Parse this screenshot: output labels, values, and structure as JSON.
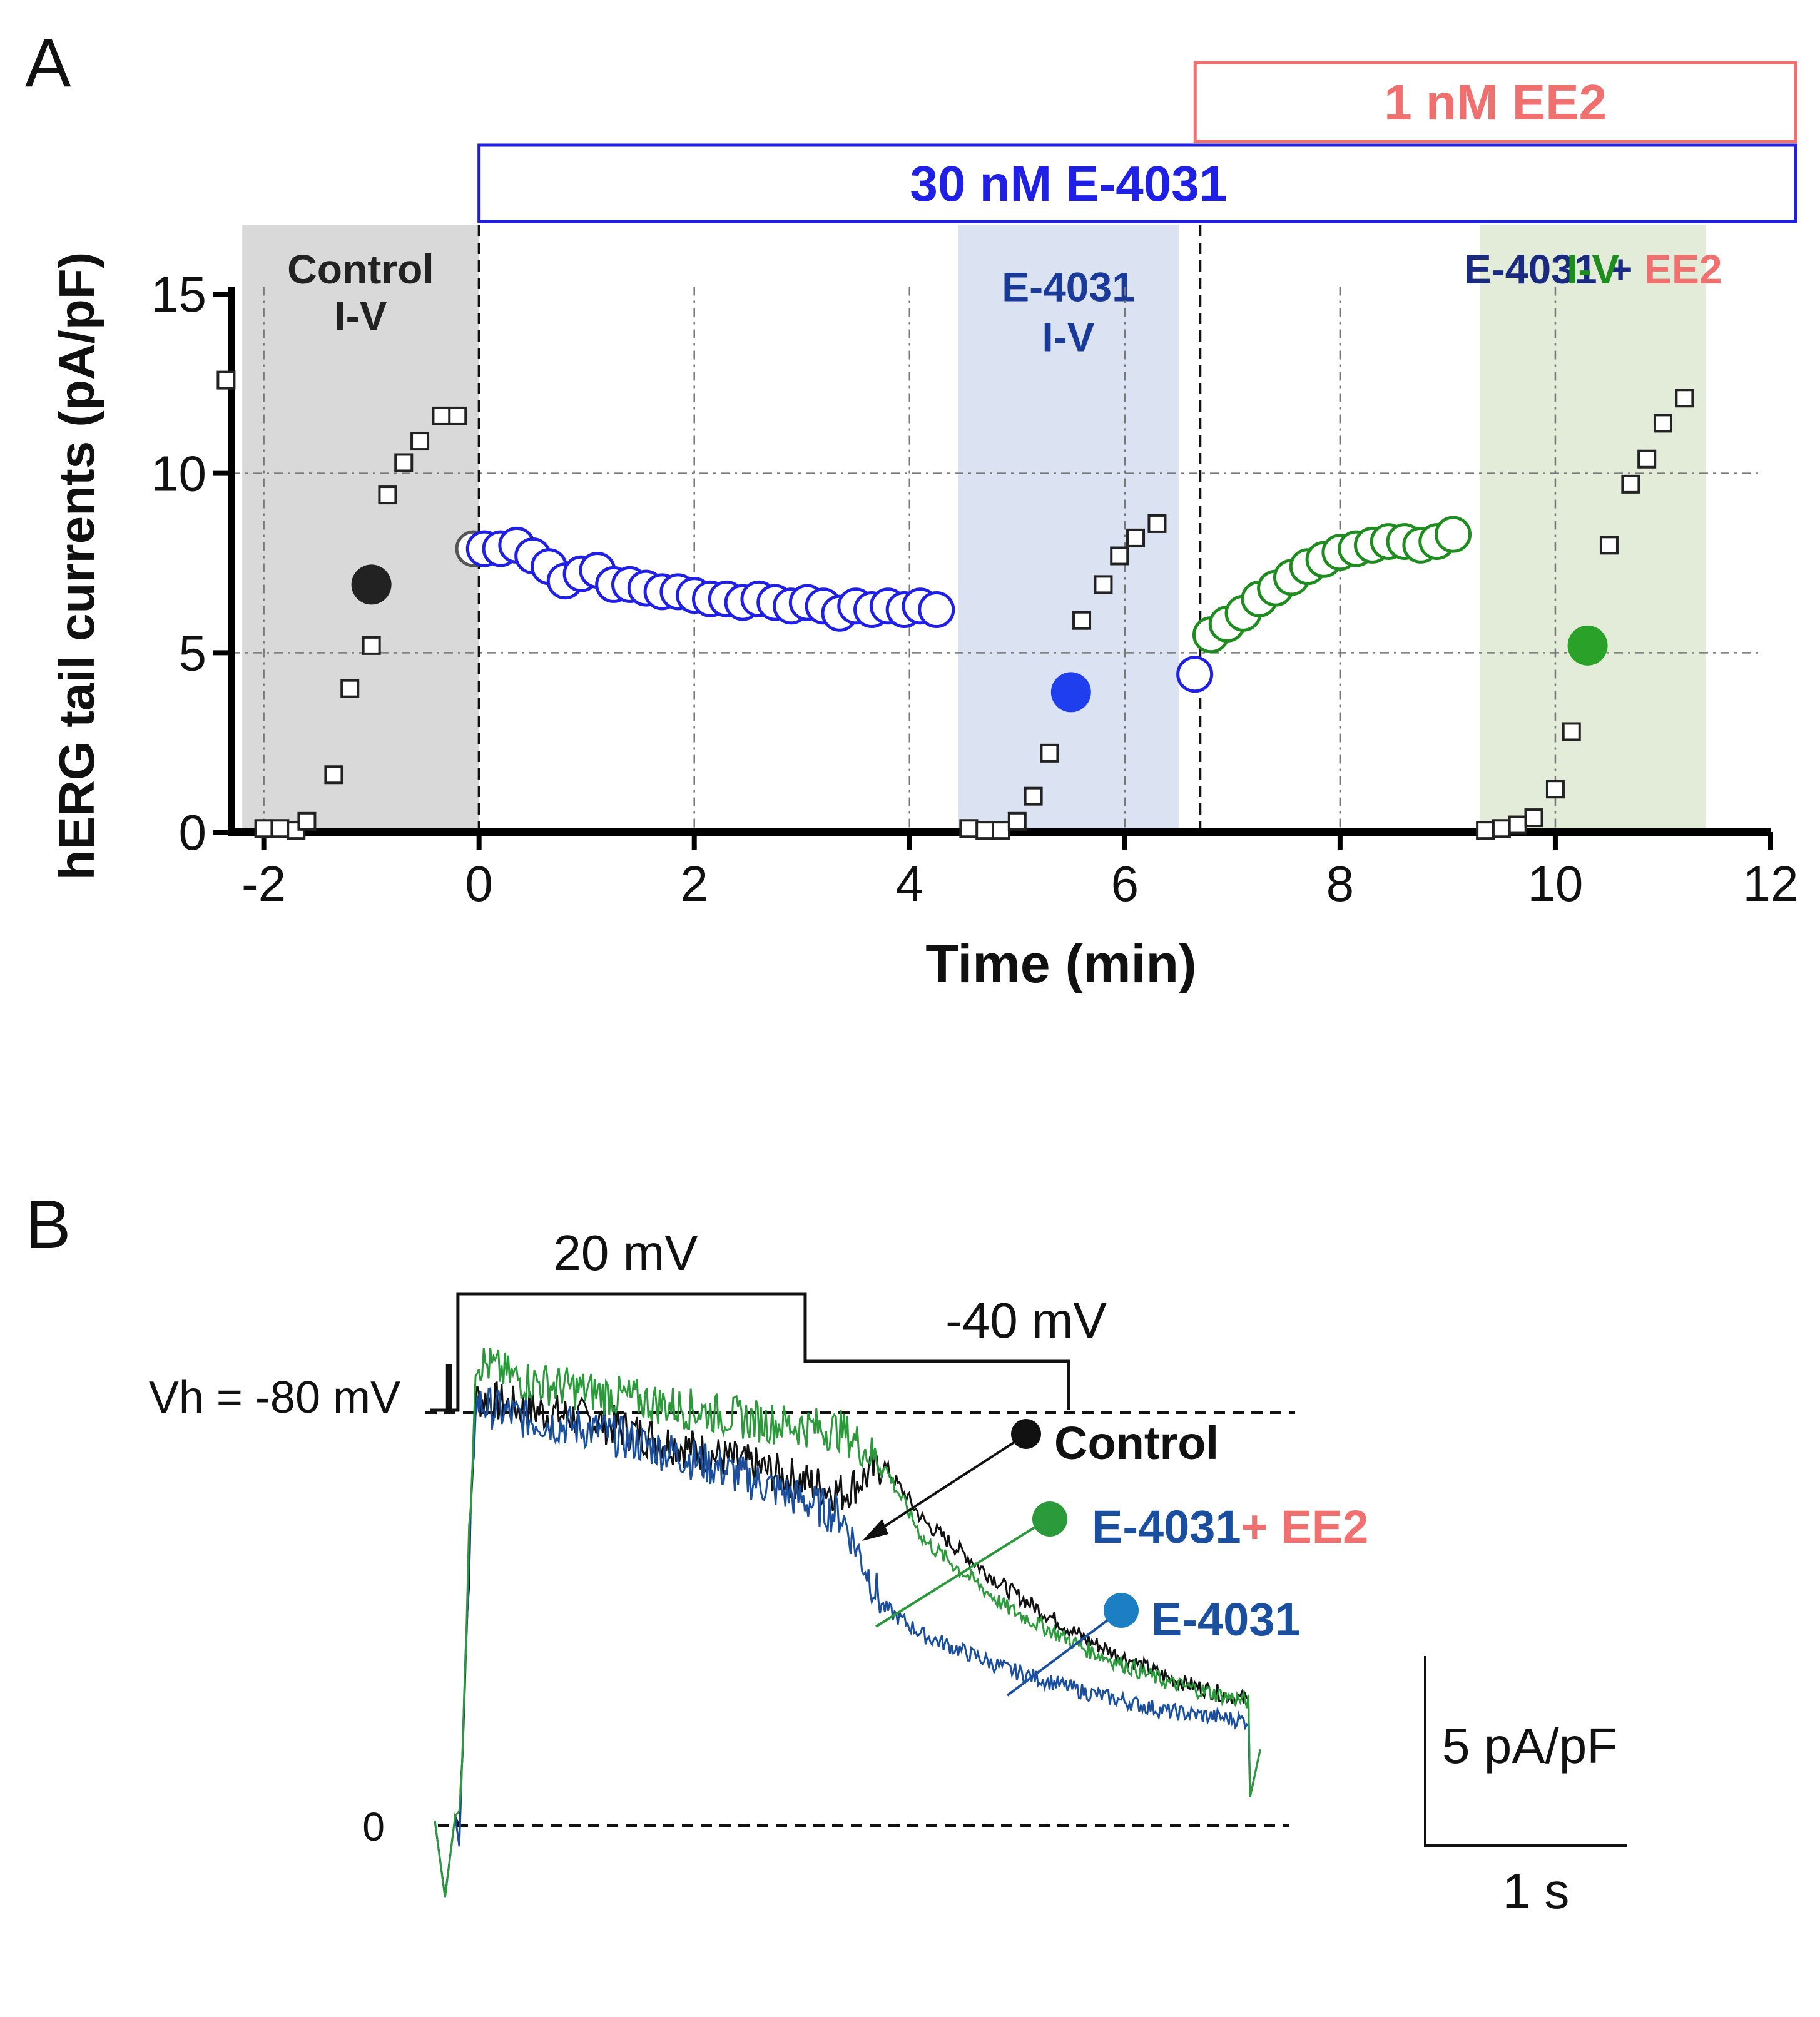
{
  "panels": {
    "a_label": "A",
    "b_label": "B"
  },
  "colors": {
    "control": "#222222",
    "e4031": "#1f1fe6",
    "ee2": "#f07070",
    "green": "#1e8c1e",
    "trace_blue": "#1a4fa0",
    "trace_green": "#2a9a3a",
    "dot_blue_light": "#1c7fc4",
    "shade_control": "#d9d9d9",
    "shade_e4031": "#dbe2f1",
    "shade_green": "#e2ecd9"
  },
  "chart_data": [
    {
      "type": "scatter",
      "panel": "A",
      "title": "",
      "xlabel": "Time (min)",
      "ylabel": "hERG tail currents (pA/pF)",
      "xlim": [
        -2.3,
        12
      ],
      "ylim": [
        0,
        15
      ],
      "xticks": [
        -2,
        0,
        2,
        4,
        6,
        8,
        10,
        12
      ],
      "xtick_labels": [
        "-2",
        "0",
        "2",
        "4",
        "6",
        "8",
        "10",
        "12"
      ],
      "yticks": [
        0,
        5,
        10,
        15
      ],
      "ytick_labels": [
        "0",
        "5",
        "10",
        "15"
      ],
      "grid": true,
      "drug_bars": [
        {
          "name": "ee2",
          "label": "1 nM EE2",
          "x_start": 6.7,
          "x_end": 12.3,
          "color": "#f07070",
          "row": 0
        },
        {
          "name": "e4031",
          "label": "30 nM E-4031",
          "x_start": 0,
          "x_end": 12.3,
          "color": "#1f1fe6",
          "row": 1
        }
      ],
      "regions": [
        {
          "name": "control-iv",
          "x_start": -2.2,
          "x_end": 0,
          "color": "#d9d9d9",
          "label_lines": [
            "Control",
            "I-V"
          ],
          "label_color": "#222222",
          "label_y": [
            15.3,
            14.0
          ]
        },
        {
          "name": "e4031-iv",
          "x_start": 4.45,
          "x_end": 6.5,
          "color": "#dbe2f1",
          "label_lines": [
            "E-4031",
            "I-V"
          ],
          "label_color": "#1a3a9a",
          "label_y": [
            14.8,
            13.4
          ]
        },
        {
          "name": "ee2-iv",
          "x_start": 9.3,
          "x_end": 11.4,
          "color": "#e2ecd9",
          "label_lines": [
            "E-4031 + ",
            "EE2",
            "I-V"
          ],
          "label_colors": [
            "#1a2a80",
            "#f07070",
            "#1e8c1e"
          ],
          "label_y": [
            15.3,
            15.3,
            14.0
          ]
        }
      ],
      "vlines": [
        {
          "name": "ee2-onset",
          "x": 6.7,
          "style": "dashed"
        }
      ],
      "series": [
        {
          "name": "Control I-V steps",
          "marker": "square",
          "color": "#222222",
          "x": [
            -2.35,
            -2.0,
            -1.85,
            -1.7,
            -1.6,
            -1.35,
            -1.2,
            -1.0,
            -0.85,
            -0.7,
            -0.55,
            -0.35,
            -0.2
          ],
          "y": [
            12.6,
            0.1,
            0.1,
            0.05,
            0.3,
            1.6,
            4.0,
            5.2,
            9.4,
            10.3,
            10.9,
            11.6,
            11.6
          ]
        },
        {
          "name": "Control mean",
          "marker": "filled-circle",
          "color": "#222222",
          "x": [
            -1.0
          ],
          "y": [
            6.9
          ]
        },
        {
          "name": "Control baseline",
          "marker": "open-circle",
          "color": "#555555",
          "x": [
            -0.05
          ],
          "y": [
            7.9
          ]
        },
        {
          "name": "E-4031 time course",
          "marker": "open-circle",
          "color": "#1f1fe6",
          "x": [
            0.05,
            0.2,
            0.35,
            0.5,
            0.65,
            0.8,
            0.95,
            1.1,
            1.25,
            1.4,
            1.55,
            1.7,
            1.85,
            2.0,
            2.15,
            2.3,
            2.45,
            2.6,
            2.75,
            2.9,
            3.05,
            3.2,
            3.35,
            3.5,
            3.65,
            3.8,
            3.95,
            4.1,
            4.25
          ],
          "y": [
            7.9,
            7.9,
            8.0,
            7.7,
            7.4,
            7.0,
            7.2,
            7.3,
            6.9,
            6.9,
            6.8,
            6.7,
            6.7,
            6.6,
            6.5,
            6.5,
            6.4,
            6.5,
            6.4,
            6.3,
            6.4,
            6.3,
            6.1,
            6.3,
            6.2,
            6.3,
            6.2,
            6.3,
            6.2
          ]
        },
        {
          "name": "E-4031 I-V steps",
          "marker": "square",
          "color": "#222222",
          "x": [
            4.55,
            4.7,
            4.85,
            5.0,
            5.15,
            5.3,
            5.45,
            5.6,
            5.8,
            5.95,
            6.1,
            6.3
          ],
          "y": [
            0.1,
            0.05,
            0.05,
            0.3,
            1.0,
            2.2,
            3.9,
            5.9,
            6.9,
            7.7,
            8.2,
            8.6
          ]
        },
        {
          "name": "E-4031 mean",
          "marker": "filled-circle",
          "color": "#1f3fef",
          "x": [
            5.5
          ],
          "y": [
            3.9
          ]
        },
        {
          "name": "E-4031 last point",
          "marker": "open-circle",
          "color": "#1f1fe6",
          "x": [
            6.65
          ],
          "y": [
            4.4
          ]
        },
        {
          "name": "E-4031 + EE2 time course",
          "marker": "open-circle",
          "color": "#1e8c1e",
          "x": [
            6.8,
            6.95,
            7.1,
            7.25,
            7.4,
            7.55,
            7.7,
            7.85,
            8.0,
            8.15,
            8.3,
            8.45,
            8.6,
            8.75,
            8.9,
            9.05
          ],
          "y": [
            5.5,
            5.8,
            6.1,
            6.5,
            6.8,
            7.1,
            7.4,
            7.6,
            7.8,
            7.9,
            8.0,
            8.1,
            8.1,
            8.0,
            8.1,
            8.3
          ]
        },
        {
          "name": "E-4031 + EE2 I-V steps",
          "marker": "square",
          "color": "#222222",
          "x": [
            9.35,
            9.5,
            9.65,
            9.8,
            10.0,
            10.15,
            10.3,
            10.5,
            10.7,
            10.85,
            11.0,
            11.2
          ],
          "y": [
            0.05,
            0.1,
            0.2,
            0.4,
            1.2,
            2.8,
            5.2,
            8.0,
            9.7,
            10.4,
            11.4,
            12.1
          ]
        },
        {
          "name": "E-4031 + EE2 mean",
          "marker": "filled-circle",
          "color": "#2aa22a",
          "x": [
            10.3
          ],
          "y": [
            5.2
          ]
        }
      ]
    },
    {
      "type": "line",
      "panel": "B",
      "title": "",
      "xlabel": "",
      "ylabel": "",
      "xlim": [
        0,
        4.2
      ],
      "ylim": [
        -1.5,
        11
      ],
      "baseline_label": "0",
      "protocol": {
        "holding_label": "Vh = -80 mV",
        "step1_label": "20 mV",
        "step2_label": "-40 mV",
        "segments_mV": [
          {
            "t_start": 0.0,
            "t_end": 0.1,
            "v": -80
          },
          {
            "t_start": 0.1,
            "t_end": 2.2,
            "v": 20
          },
          {
            "t_start": 2.2,
            "t_end": 4.0,
            "v": -40
          },
          {
            "t_start": 4.0,
            "t_end": 4.2,
            "v": -80
          }
        ]
      },
      "scale_bar": {
        "y_label": "5 pA/pF",
        "y_value": 5,
        "x_label": "1 s",
        "x_value": 1
      },
      "series": [
        {
          "name": "Control",
          "label": "Control",
          "color": "#111111",
          "t": [
            0.12,
            0.2,
            0.4,
            0.8,
            1.2,
            1.6,
            2.0,
            2.2,
            2.4,
            2.8,
            3.2,
            3.6,
            4.0
          ],
          "i": [
            0,
            9.0,
            8.8,
            8.5,
            8.0,
            7.5,
            7.0,
            7.6,
            6.4,
            5.0,
            3.9,
            3.1,
            2.6
          ]
        },
        {
          "name": "E-4031 + EE2",
          "label_parts": [
            "E-4031",
            "+ EE2"
          ],
          "color": "#2a9a3a",
          "t": [
            0.12,
            0.2,
            0.4,
            0.8,
            1.2,
            1.6,
            2.0,
            2.2,
            2.4,
            2.8,
            3.2,
            3.6,
            4.0
          ],
          "i": [
            0,
            9.8,
            9.4,
            9.1,
            8.8,
            8.5,
            8.3,
            7.6,
            6.0,
            4.6,
            3.7,
            3.0,
            2.6
          ]
        },
        {
          "name": "E-4031",
          "label": "E-4031",
          "color": "#1a4fa0",
          "t": [
            0.12,
            0.2,
            0.4,
            0.8,
            1.2,
            1.6,
            2.0,
            2.2,
            2.4,
            2.8,
            3.2,
            3.6,
            4.0
          ],
          "i": [
            0,
            8.9,
            8.6,
            8.3,
            7.8,
            7.2,
            6.5,
            4.6,
            4.0,
            3.3,
            2.8,
            2.4,
            2.2
          ]
        }
      ]
    }
  ]
}
